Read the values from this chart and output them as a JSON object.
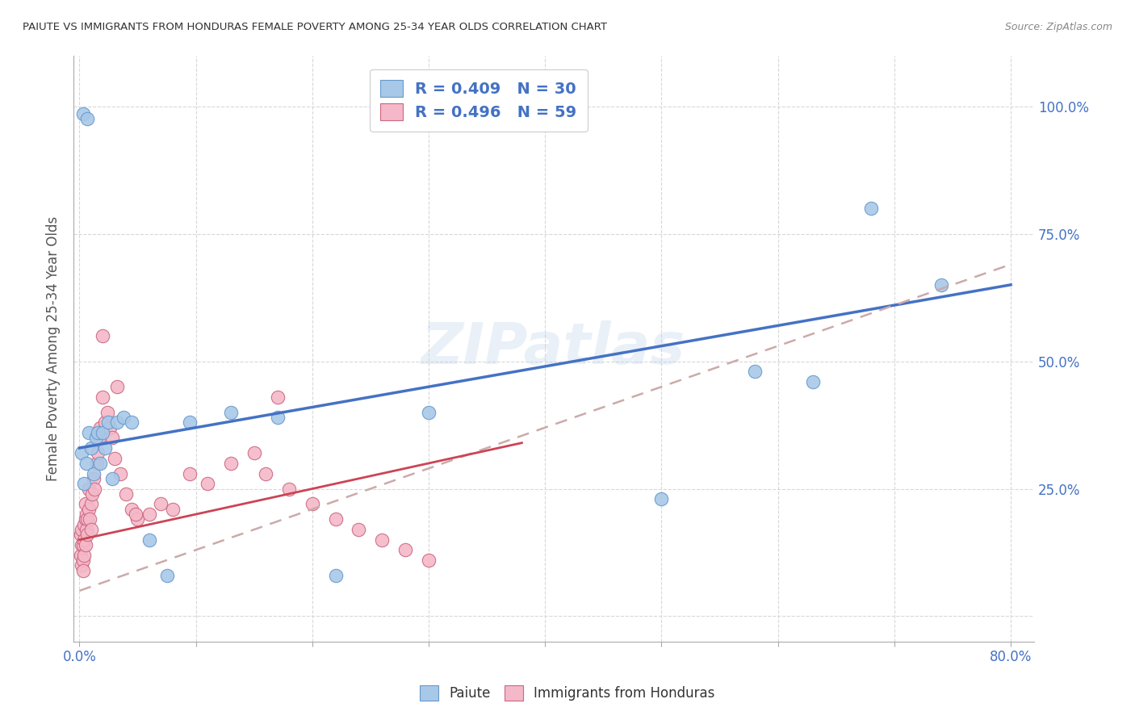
{
  "title": "PAIUTE VS IMMIGRANTS FROM HONDURAS FEMALE POVERTY AMONG 25-34 YEAR OLDS CORRELATION CHART",
  "source": "Source: ZipAtlas.com",
  "ylabel": "Female Poverty Among 25-34 Year Olds",
  "watermark": "ZIPatlas",
  "blue_color": "#a8c8e8",
  "blue_edge_color": "#6699cc",
  "pink_color": "#f4b8c8",
  "pink_edge_color": "#cc6680",
  "blue_line_color": "#4472c4",
  "pink_line_color": "#cc4455",
  "dashed_line_color": "#ccaaaa",
  "label_color": "#4472c4",
  "paiute_x": [
    0.003,
    0.007,
    0.002,
    0.004,
    0.006,
    0.008,
    0.01,
    0.012,
    0.014,
    0.016,
    0.018,
    0.02,
    0.022,
    0.025,
    0.028,
    0.032,
    0.038,
    0.045,
    0.06,
    0.075,
    0.095,
    0.13,
    0.17,
    0.22,
    0.3,
    0.5,
    0.58,
    0.63,
    0.68,
    0.74
  ],
  "paiute_y": [
    0.985,
    0.975,
    0.32,
    0.26,
    0.3,
    0.36,
    0.33,
    0.28,
    0.35,
    0.36,
    0.3,
    0.36,
    0.33,
    0.38,
    0.27,
    0.38,
    0.39,
    0.38,
    0.15,
    0.08,
    0.38,
    0.4,
    0.39,
    0.08,
    0.4,
    0.23,
    0.48,
    0.46,
    0.8,
    0.65
  ],
  "honduras_x": [
    0.001,
    0.001,
    0.002,
    0.002,
    0.002,
    0.003,
    0.003,
    0.003,
    0.004,
    0.004,
    0.004,
    0.005,
    0.005,
    0.005,
    0.006,
    0.006,
    0.007,
    0.007,
    0.008,
    0.008,
    0.009,
    0.01,
    0.01,
    0.011,
    0.012,
    0.013,
    0.015,
    0.016,
    0.017,
    0.018,
    0.02,
    0.022,
    0.024,
    0.026,
    0.028,
    0.03,
    0.035,
    0.04,
    0.045,
    0.05,
    0.06,
    0.07,
    0.08,
    0.095,
    0.11,
    0.13,
    0.15,
    0.16,
    0.18,
    0.2,
    0.22,
    0.24,
    0.26,
    0.28,
    0.3,
    0.02,
    0.032,
    0.048,
    0.17
  ],
  "honduras_y": [
    0.16,
    0.12,
    0.17,
    0.14,
    0.1,
    0.14,
    0.11,
    0.09,
    0.15,
    0.18,
    0.12,
    0.19,
    0.22,
    0.14,
    0.17,
    0.2,
    0.19,
    0.16,
    0.21,
    0.25,
    0.19,
    0.22,
    0.17,
    0.24,
    0.27,
    0.25,
    0.3,
    0.32,
    0.35,
    0.37,
    0.43,
    0.38,
    0.4,
    0.37,
    0.35,
    0.31,
    0.28,
    0.24,
    0.21,
    0.19,
    0.2,
    0.22,
    0.21,
    0.28,
    0.26,
    0.3,
    0.32,
    0.28,
    0.25,
    0.22,
    0.19,
    0.17,
    0.15,
    0.13,
    0.11,
    0.55,
    0.45,
    0.2,
    0.43
  ],
  "xlim": [
    -0.005,
    0.82
  ],
  "ylim": [
    -0.05,
    1.1
  ],
  "xtick_pos": [
    0.0,
    0.1,
    0.2,
    0.3,
    0.4,
    0.5,
    0.6,
    0.7,
    0.8
  ],
  "ytick_pos": [
    0.0,
    0.25,
    0.5,
    0.75,
    1.0
  ],
  "ytick_labels": [
    "",
    "25.0%",
    "50.0%",
    "75.0%",
    "100.0%"
  ]
}
